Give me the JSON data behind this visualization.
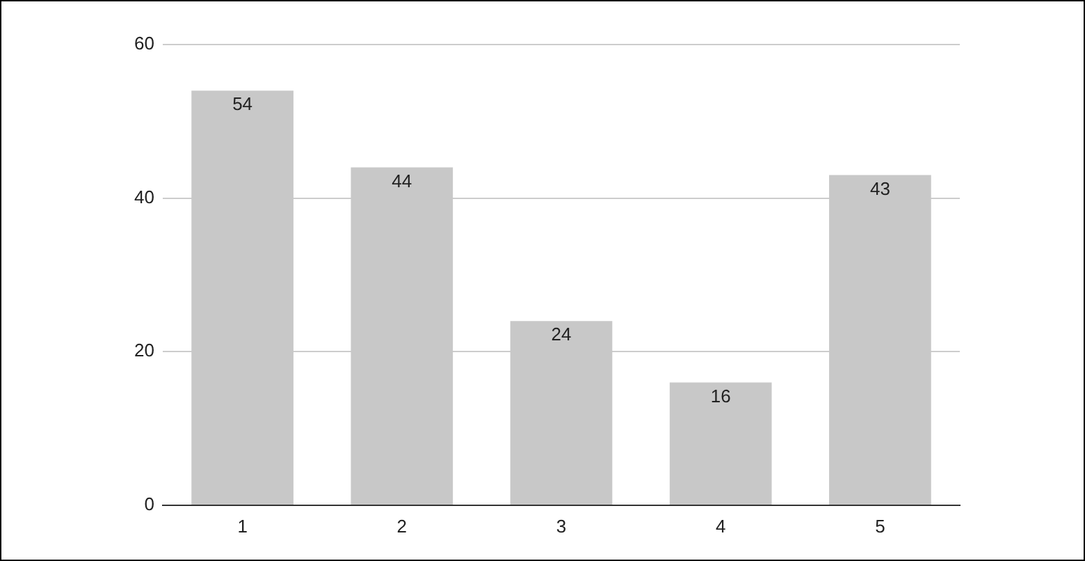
{
  "chart_data": {
    "type": "bar",
    "categories": [
      "1",
      "2",
      "3",
      "4",
      "5"
    ],
    "values": [
      54,
      44,
      24,
      16,
      43
    ],
    "color": "#c8c8c8",
    "ylim": [
      0,
      60
    ],
    "yticks": [
      0,
      20,
      40,
      60
    ],
    "grid": "y",
    "data_labels": true
  }
}
